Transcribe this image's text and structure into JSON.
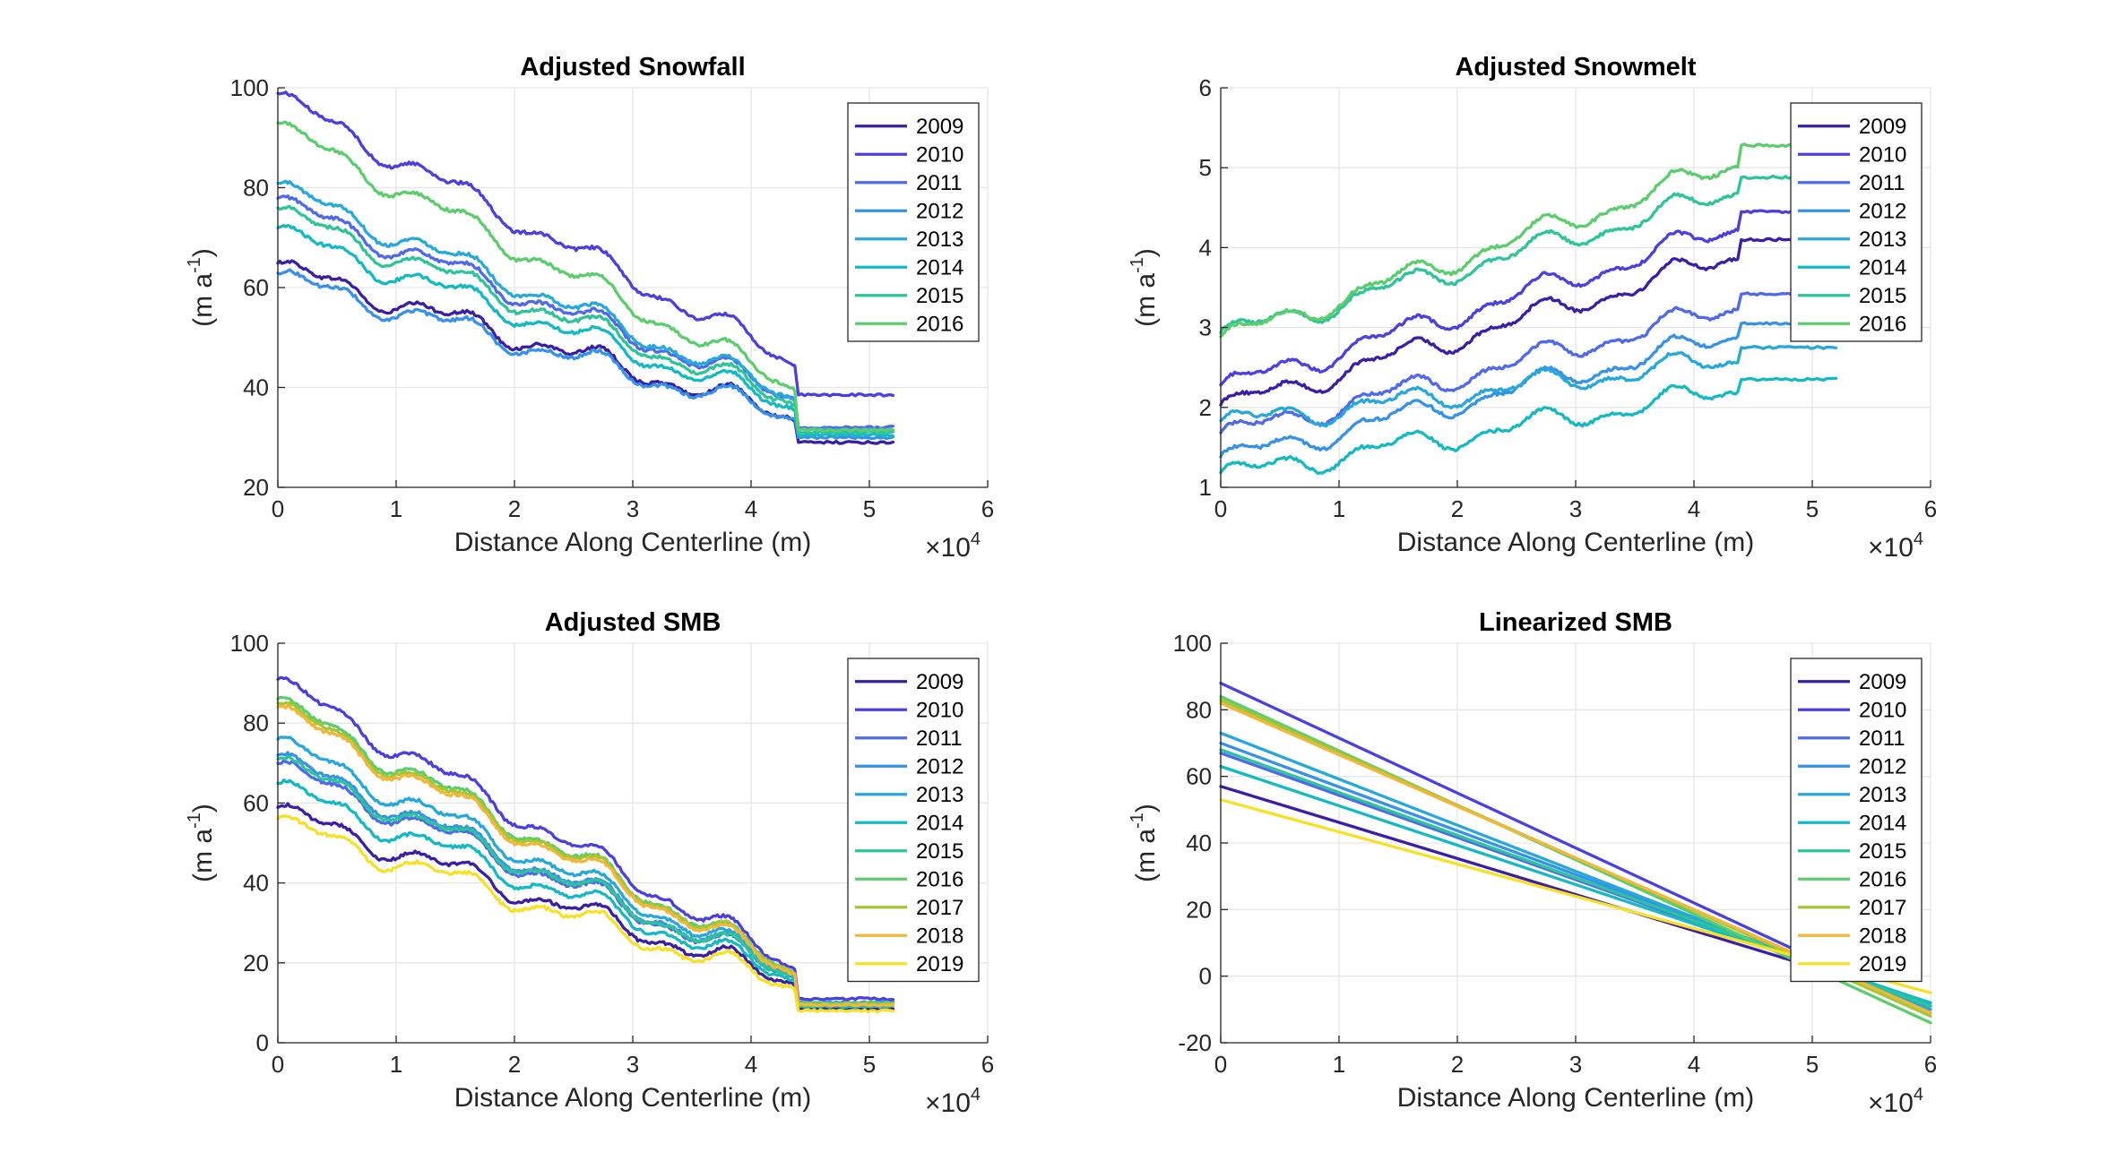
{
  "figure": {
    "colors": {
      "2009": "#3a1fa6",
      "2010": "#4b3fe0",
      "2011": "#4f69ec",
      "2012": "#3592e8",
      "2013": "#27a8db",
      "2014": "#14b9c3",
      "2015": "#2ec49a",
      "2016": "#5ccd6c",
      "2017": "#a5c632",
      "2018": "#f1b73b",
      "2019": "#f7e026"
    }
  },
  "chart_data": [
    {
      "type": "line",
      "title": "Adjusted Snowfall",
      "xlabel": "Distance Along Centerline (m)",
      "ylabel": "(m a",
      "ylabel_sup": "-1",
      "ylabel_close": ")",
      "x_multiplier": "×10",
      "x_multiplier_exp": "4",
      "xlim": [
        0,
        6
      ],
      "ylim": [
        20,
        100
      ],
      "xticks": [
        "0",
        "1",
        "2",
        "3",
        "4",
        "5",
        "6"
      ],
      "yticks": [
        "20",
        "40",
        "60",
        "80",
        "100"
      ],
      "grid": true,
      "legend_position": "top-right",
      "x_end": 5.2,
      "step_at": 4.37,
      "series": [
        {
          "name": "2009",
          "start": 64,
          "pre_step": 34,
          "post_step": 29
        },
        {
          "name": "2010",
          "start": 98,
          "pre_step": 45,
          "post_step": 38.5
        },
        {
          "name": "2011",
          "start": 77,
          "pre_step": 38,
          "post_step": 32
        },
        {
          "name": "2012",
          "start": 62,
          "pre_step": 34,
          "post_step": 30
        },
        {
          "name": "2013",
          "start": 80,
          "pre_step": 38,
          "post_step": 31.5
        },
        {
          "name": "2014",
          "start": 71,
          "pre_step": 36,
          "post_step": 30.5
        },
        {
          "name": "2015",
          "start": 75,
          "pre_step": 37,
          "post_step": 31
        },
        {
          "name": "2016",
          "start": 92,
          "pre_step": 40,
          "post_step": 31.5
        }
      ]
    },
    {
      "type": "line",
      "title": "Adjusted Snowmelt",
      "xlabel": "Distance Along Centerline (m)",
      "ylabel": "(m a",
      "ylabel_sup": "-1",
      "ylabel_close": ")",
      "x_multiplier": "×10",
      "x_multiplier_exp": "4",
      "xlim": [
        0,
        6
      ],
      "ylim": [
        1,
        6
      ],
      "xticks": [
        "0",
        "1",
        "2",
        "3",
        "4",
        "5",
        "6"
      ],
      "yticks": [
        "1",
        "2",
        "3",
        "4",
        "5",
        "6"
      ],
      "grid": true,
      "legend_position": "top-right",
      "x_end": 5.2,
      "step_at": 4.37,
      "series": [
        {
          "name": "2009",
          "start": 2.0,
          "pre_step": 3.9,
          "post_step": 4.1
        },
        {
          "name": "2010",
          "start": 2.25,
          "pre_step": 4.25,
          "post_step": 4.45
        },
        {
          "name": "2011",
          "start": 1.65,
          "pre_step": 3.25,
          "post_step": 3.42
        },
        {
          "name": "2012",
          "start": 1.35,
          "pre_step": 2.9,
          "post_step": 3.05
        },
        {
          "name": "2013",
          "start": 1.8,
          "pre_step": 2.6,
          "post_step": 2.75
        },
        {
          "name": "2014",
          "start": 1.15,
          "pre_step": 2.22,
          "post_step": 2.35
        },
        {
          "name": "2015",
          "start": 2.9,
          "pre_step": 4.7,
          "post_step": 4.88
        },
        {
          "name": "2016",
          "start": 2.85,
          "pre_step": 5.05,
          "post_step": 5.28
        }
      ]
    },
    {
      "type": "line",
      "title": "Adjusted SMB",
      "xlabel": "Distance Along Centerline (m)",
      "ylabel": "(m a",
      "ylabel_sup": "-1",
      "ylabel_close": ")",
      "x_multiplier": "×10",
      "x_multiplier_exp": "4",
      "xlim": [
        0,
        6
      ],
      "ylim": [
        0,
        100
      ],
      "xticks": [
        "0",
        "1",
        "2",
        "3",
        "4",
        "5",
        "6"
      ],
      "yticks": [
        "0",
        "20",
        "40",
        "60",
        "80",
        "100"
      ],
      "grid": true,
      "legend_position": "top-right",
      "x_end": 5.2,
      "step_at": 4.37,
      "series": [
        {
          "name": "2009",
          "start": 58,
          "pre_step": 15,
          "post_step": 8.5
        },
        {
          "name": "2010",
          "start": 90,
          "pre_step": 19,
          "post_step": 11
        },
        {
          "name": "2011",
          "start": 69,
          "pre_step": 17,
          "post_step": 10
        },
        {
          "name": "2012",
          "start": 71,
          "pre_step": 17,
          "post_step": 9.5
        },
        {
          "name": "2013",
          "start": 75,
          "pre_step": 17.5,
          "post_step": 10
        },
        {
          "name": "2014",
          "start": 64,
          "pre_step": 16,
          "post_step": 9
        },
        {
          "name": "2015",
          "start": 70,
          "pre_step": 17,
          "post_step": 9.5
        },
        {
          "name": "2016",
          "start": 85,
          "pre_step": 18,
          "post_step": 10
        },
        {
          "name": "2017",
          "start": 84,
          "pre_step": 18,
          "post_step": 9.5
        },
        {
          "name": "2018",
          "start": 83,
          "pre_step": 17.5,
          "post_step": 9.5
        },
        {
          "name": "2019",
          "start": 55,
          "pre_step": 14,
          "post_step": 8
        }
      ]
    },
    {
      "type": "line",
      "title": "Linearized SMB",
      "xlabel": "Distance Along Centerline (m)",
      "ylabel": "(m a",
      "ylabel_sup": "-1",
      "ylabel_close": ")",
      "x_multiplier": "×10",
      "x_multiplier_exp": "4",
      "xlim": [
        0,
        6
      ],
      "ylim": [
        -20,
        100
      ],
      "xticks": [
        "0",
        "1",
        "2",
        "3",
        "4",
        "5",
        "6"
      ],
      "yticks": [
        "-20",
        "0",
        "20",
        "40",
        "60",
        "80",
        "100"
      ],
      "grid": true,
      "legend_position": "top-right",
      "series": [
        {
          "name": "2009",
          "x": [
            0,
            6
          ],
          "y": [
            57,
            -8
          ]
        },
        {
          "name": "2010",
          "x": [
            0,
            6
          ],
          "y": [
            88,
            -11
          ]
        },
        {
          "name": "2011",
          "x": [
            0,
            6
          ],
          "y": [
            67,
            -9
          ]
        },
        {
          "name": "2012",
          "x": [
            0,
            6
          ],
          "y": [
            70,
            -9
          ]
        },
        {
          "name": "2013",
          "x": [
            0,
            6
          ],
          "y": [
            73,
            -10
          ]
        },
        {
          "name": "2014",
          "x": [
            0,
            6
          ],
          "y": [
            63,
            -8
          ]
        },
        {
          "name": "2015",
          "x": [
            0,
            6
          ],
          "y": [
            68,
            -9
          ]
        },
        {
          "name": "2016",
          "x": [
            0,
            6
          ],
          "y": [
            84,
            -14
          ]
        },
        {
          "name": "2017",
          "x": [
            0,
            6
          ],
          "y": [
            83,
            -12
          ]
        },
        {
          "name": "2018",
          "x": [
            0,
            6
          ],
          "y": [
            82,
            -11
          ]
        },
        {
          "name": "2019",
          "x": [
            0,
            6
          ],
          "y": [
            53,
            -5
          ]
        }
      ]
    }
  ]
}
